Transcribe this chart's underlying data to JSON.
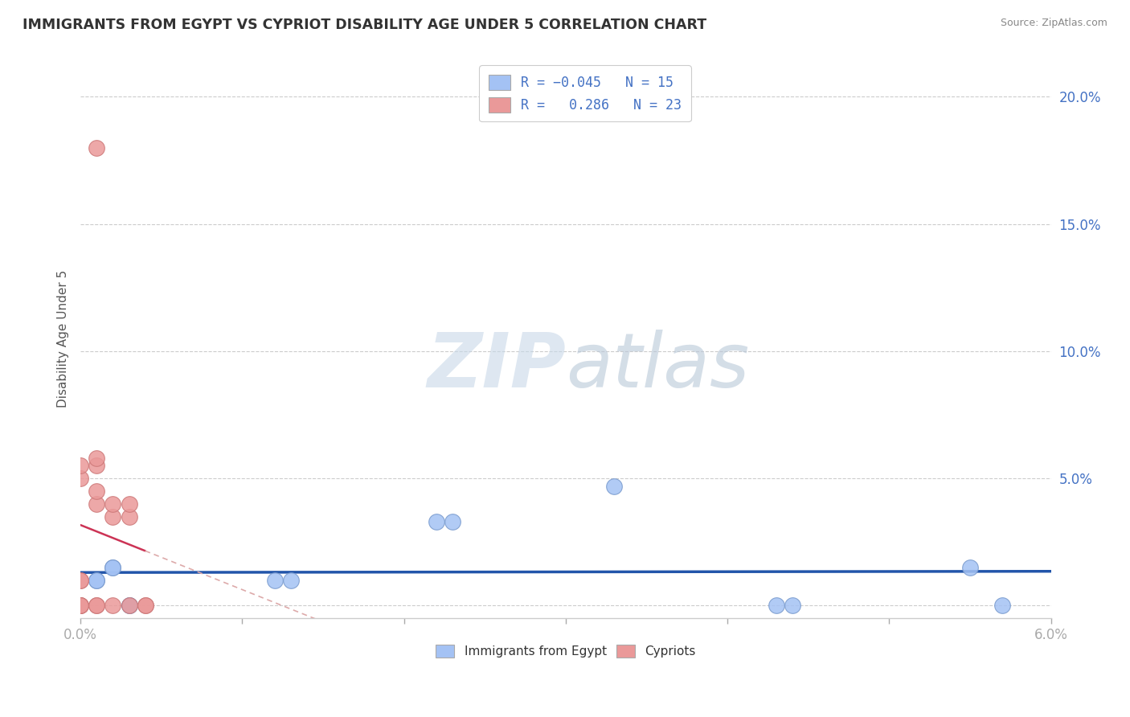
{
  "title": "IMMIGRANTS FROM EGYPT VS CYPRIOT DISABILITY AGE UNDER 5 CORRELATION CHART",
  "source": "Source: ZipAtlas.com",
  "ylabel_label": "Disability Age Under 5",
  "xlim": [
    0.0,
    0.06
  ],
  "ylim": [
    -0.005,
    0.215
  ],
  "xticks": [
    0.0,
    0.01,
    0.02,
    0.03,
    0.04,
    0.05,
    0.06
  ],
  "xtick_labels": [
    "0.0%",
    "",
    "",
    "",
    "",
    "",
    "6.0%"
  ],
  "yticks": [
    0.0,
    0.05,
    0.1,
    0.15,
    0.2
  ],
  "ytick_labels": [
    "",
    "5.0%",
    "10.0%",
    "15.0%",
    "20.0%"
  ],
  "legend_r_blue": "-0.045",
  "legend_n_blue": "15",
  "legend_r_pink": "0.286",
  "legend_n_pink": "23",
  "blue_color": "#a4c2f4",
  "pink_color": "#ea9999",
  "blue_scatter": [
    [
      0.001,
      0.01
    ],
    [
      0.001,
      0.01
    ],
    [
      0.002,
      0.015
    ],
    [
      0.002,
      0.015
    ],
    [
      0.003,
      0.0
    ],
    [
      0.003,
      0.0
    ],
    [
      0.012,
      0.01
    ],
    [
      0.013,
      0.01
    ],
    [
      0.022,
      0.033
    ],
    [
      0.023,
      0.033
    ],
    [
      0.033,
      0.047
    ],
    [
      0.043,
      0.0
    ],
    [
      0.044,
      0.0
    ],
    [
      0.055,
      0.015
    ],
    [
      0.057,
      0.0
    ]
  ],
  "pink_scatter": [
    [
      0.0,
      0.0
    ],
    [
      0.0,
      0.0
    ],
    [
      0.0,
      0.0
    ],
    [
      0.0,
      0.01
    ],
    [
      0.0,
      0.01
    ],
    [
      0.0,
      0.05
    ],
    [
      0.0,
      0.055
    ],
    [
      0.001,
      0.0
    ],
    [
      0.001,
      0.0
    ],
    [
      0.001,
      0.04
    ],
    [
      0.001,
      0.045
    ],
    [
      0.001,
      0.055
    ],
    [
      0.001,
      0.058
    ],
    [
      0.002,
      0.0
    ],
    [
      0.002,
      0.035
    ],
    [
      0.002,
      0.04
    ],
    [
      0.003,
      0.035
    ],
    [
      0.003,
      0.04
    ],
    [
      0.003,
      0.0
    ],
    [
      0.004,
      0.0
    ],
    [
      0.004,
      0.0
    ],
    [
      0.001,
      0.18
    ],
    [
      0.0,
      0.0
    ]
  ],
  "blue_line_color": "#2255aa",
  "pink_line_color": "#cc3355",
  "pink_line_dashed_color": "#ddaaaa",
  "watermark_color": "#c8d8e8",
  "background_color": "#ffffff",
  "grid_color": "#cccccc"
}
